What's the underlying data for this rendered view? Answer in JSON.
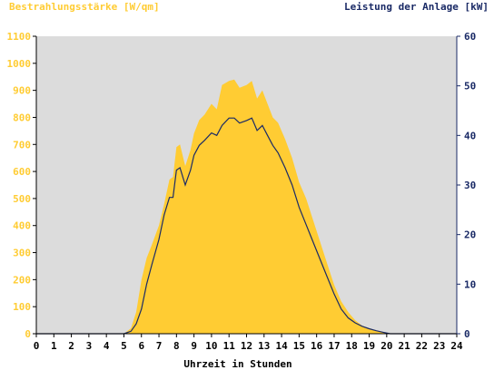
{
  "chart_data": {
    "type": "area",
    "left_axis_title": "Bestrahlungsstärke [W/qm]",
    "right_axis_title": "Leistung der Anlage [kW]",
    "xlabel": "Uhrzeit in Stunden",
    "xlim": [
      0,
      24
    ],
    "ylim_left": [
      0,
      1100
    ],
    "ylim_right": [
      0,
      60
    ],
    "x_ticks": [
      "0",
      "1",
      "2",
      "3",
      "4",
      "5",
      "6",
      "7",
      "8",
      "9",
      "10",
      "11",
      "12",
      "13",
      "14",
      "15",
      "16",
      "17",
      "18",
      "19",
      "20",
      "21",
      "22",
      "23",
      "24"
    ],
    "y_ticks_left": [
      "0",
      "100",
      "200",
      "300",
      "400",
      "500",
      "600",
      "700",
      "800",
      "900",
      "1000",
      "1100"
    ],
    "y_ticks_right": [
      "0",
      "10",
      "20",
      "30",
      "40",
      "50",
      "60"
    ],
    "colors": {
      "irradiance": "#ffcc33",
      "power": "#1a2a66",
      "left_axis": "#ffcc33",
      "right_axis": "#1a2a66",
      "plot_bg": "#dcdcdc"
    },
    "series": [
      {
        "name": "Bestrahlungsstärke [W/qm]",
        "axis": "left",
        "x": [
          0,
          5.0,
          5.4,
          5.7,
          6.0,
          6.3,
          6.6,
          7.0,
          7.3,
          7.6,
          7.8,
          8.0,
          8.2,
          8.5,
          8.8,
          9.0,
          9.3,
          9.6,
          10.0,
          10.3,
          10.6,
          11.0,
          11.3,
          11.6,
          12.0,
          12.3,
          12.6,
          12.9,
          13.2,
          13.5,
          13.8,
          14.2,
          14.6,
          15.0,
          15.4,
          15.8,
          16.2,
          16.6,
          17.0,
          17.4,
          17.8,
          18.2,
          18.6,
          19.0,
          19.4,
          19.8,
          20.2,
          24
        ],
        "y": [
          0,
          0,
          20,
          80,
          200,
          280,
          330,
          400,
          480,
          570,
          580,
          690,
          700,
          620,
          680,
          740,
          790,
          810,
          850,
          830,
          920,
          935,
          940,
          910,
          920,
          935,
          870,
          900,
          850,
          800,
          780,
          720,
          650,
          560,
          500,
          420,
          340,
          260,
          180,
          120,
          80,
          50,
          30,
          20,
          12,
          6,
          0,
          0
        ]
      },
      {
        "name": "Leistung der Anlage [kW]",
        "axis": "right",
        "x": [
          0,
          5.0,
          5.4,
          5.7,
          6.0,
          6.3,
          6.6,
          7.0,
          7.3,
          7.6,
          7.8,
          8.0,
          8.2,
          8.5,
          8.8,
          9.0,
          9.3,
          9.6,
          10.0,
          10.3,
          10.6,
          11.0,
          11.3,
          11.6,
          12.0,
          12.3,
          12.6,
          12.9,
          13.2,
          13.5,
          13.8,
          14.2,
          14.6,
          15.0,
          15.4,
          15.8,
          16.2,
          16.6,
          17.0,
          17.4,
          17.8,
          18.2,
          18.6,
          19.0,
          19.4,
          19.8,
          20.2,
          24
        ],
        "y": [
          0,
          0,
          0.5,
          2.0,
          5.0,
          10.0,
          14.0,
          19.0,
          24.0,
          27.5,
          27.5,
          33.0,
          33.5,
          30.0,
          33.0,
          36.0,
          38.0,
          39.0,
          40.5,
          40.0,
          42.0,
          43.5,
          43.5,
          42.5,
          43.0,
          43.5,
          41.0,
          42.0,
          40.0,
          38.0,
          36.5,
          33.5,
          30.0,
          25.5,
          22.0,
          18.5,
          15.0,
          11.5,
          8.0,
          5.0,
          3.2,
          2.2,
          1.5,
          1.0,
          0.6,
          0.3,
          0,
          0
        ]
      }
    ]
  }
}
